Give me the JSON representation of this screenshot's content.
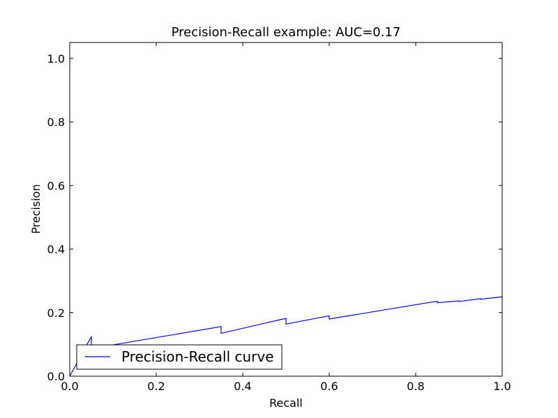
{
  "chart_data": {
    "type": "line",
    "title": "Precision-Recall example: AUC=0.17",
    "xlabel": "Recall",
    "ylabel": "Precision",
    "xlim": [
      0.0,
      1.0
    ],
    "ylim": [
      0.0,
      1.05
    ],
    "grid": false,
    "legend_position": "lower-left",
    "xticks": [
      {
        "value": 0.0,
        "label": "0.0"
      },
      {
        "value": 0.2,
        "label": "0.2"
      },
      {
        "value": 0.4,
        "label": "0.4"
      },
      {
        "value": 0.6,
        "label": "0.6"
      },
      {
        "value": 0.8,
        "label": "0.8"
      },
      {
        "value": 1.0,
        "label": "1.0"
      }
    ],
    "yticks": [
      {
        "value": 0.0,
        "label": "0.0"
      },
      {
        "value": 0.2,
        "label": "0.2"
      },
      {
        "value": 0.4,
        "label": "0.4"
      },
      {
        "value": 0.6,
        "label": "0.6"
      },
      {
        "value": 0.8,
        "label": "0.8"
      },
      {
        "value": 1.0,
        "label": "1.0"
      }
    ],
    "series": [
      {
        "name": "Precision-Recall curve",
        "color": "#0000ff",
        "x": [
          0.0,
          0.05,
          0.05,
          0.35,
          0.35,
          0.5,
          0.5,
          0.6,
          0.6,
          0.85,
          0.85,
          0.9,
          0.9,
          0.95,
          0.95,
          1.0
        ],
        "y": [
          0.0,
          0.125,
          0.087,
          0.156,
          0.135,
          0.182,
          0.164,
          0.19,
          0.18,
          0.236,
          0.231,
          0.237,
          0.235,
          0.244,
          0.242,
          0.25
        ]
      }
    ]
  }
}
